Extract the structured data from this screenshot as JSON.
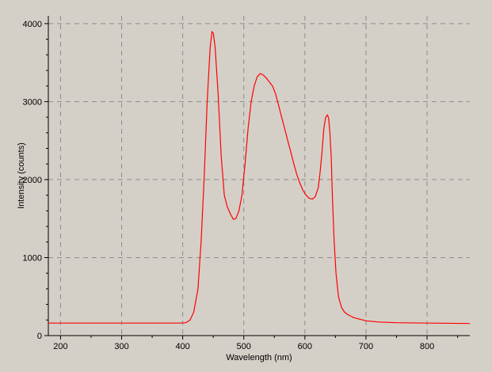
{
  "chart_data": {
    "type": "line",
    "xlabel": "Wavelength (nm)",
    "ylabel": "Intensity (counts)",
    "xlim": [
      180,
      870
    ],
    "ylim": [
      0,
      4100
    ],
    "xticks": [
      200,
      300,
      400,
      500,
      600,
      700,
      800
    ],
    "yticks": [
      0,
      1000,
      2000,
      3000,
      4000
    ],
    "xtick_labels": [
      "200",
      "300",
      "400",
      "500",
      "600",
      "700",
      "800"
    ],
    "ytick_labels": [
      "0",
      "1000",
      "2000",
      "3000",
      "4000"
    ],
    "grid": true,
    "legend": "none",
    "series": [
      {
        "color": "#ff0000",
        "x": [
          180,
          250,
          350,
          395,
          405,
          412,
          418,
          425,
          430,
          435,
          440,
          445,
          448,
          450,
          453,
          458,
          463,
          468,
          473,
          478,
          483,
          487,
          492,
          497,
          502,
          507,
          512,
          517,
          522,
          527,
          532,
          537,
          542,
          547,
          552,
          557,
          562,
          567,
          572,
          577,
          582,
          587,
          592,
          597,
          602,
          607,
          612,
          617,
          622,
          625,
          628,
          631,
          634,
          637,
          639,
          641,
          643,
          645,
          648,
          651,
          655,
          660,
          665,
          670,
          675,
          680,
          690,
          700,
          720,
          750,
          800,
          870
        ],
        "y": [
          160,
          160,
          160,
          160,
          165,
          200,
          300,
          600,
          1200,
          2000,
          3000,
          3700,
          3900,
          3880,
          3700,
          3100,
          2300,
          1800,
          1650,
          1560,
          1490,
          1500,
          1600,
          1800,
          2200,
          2650,
          3000,
          3200,
          3320,
          3360,
          3340,
          3300,
          3250,
          3200,
          3100,
          2950,
          2800,
          2650,
          2500,
          2350,
          2200,
          2060,
          1950,
          1860,
          1800,
          1760,
          1750,
          1780,
          1900,
          2100,
          2350,
          2650,
          2800,
          2830,
          2780,
          2600,
          2300,
          1800,
          1200,
          800,
          500,
          360,
          300,
          270,
          250,
          230,
          210,
          190,
          175,
          165,
          160,
          155
        ]
      }
    ]
  }
}
